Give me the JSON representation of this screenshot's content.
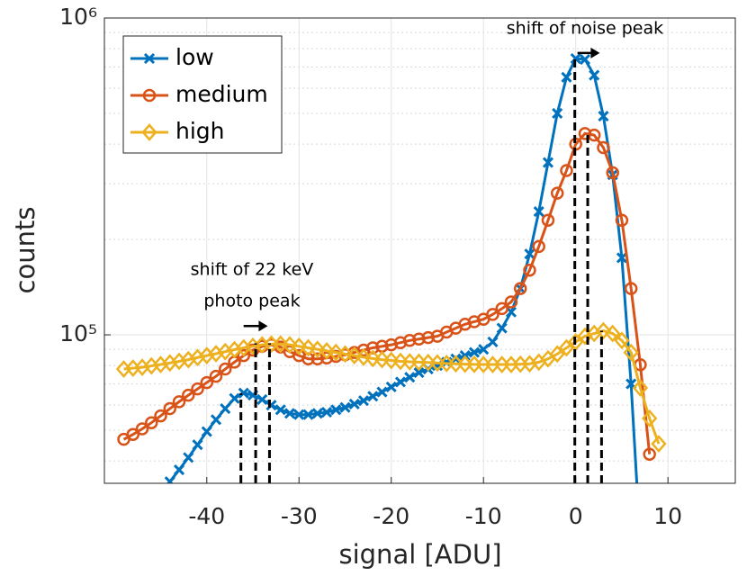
{
  "chart_data": {
    "type": "line",
    "xlabel": "signal [ADU]",
    "ylabel": "counts",
    "xlim": [
      -51.1,
      17.3
    ],
    "xticks": [
      -40,
      -30,
      -20,
      -10,
      0,
      10
    ],
    "ylim": [
      34000,
      1000000
    ],
    "yscale": "log",
    "yticks": [
      {
        "value": 100000,
        "label": "10⁵"
      },
      {
        "value": 1000000,
        "label": "10⁶"
      }
    ],
    "y_minor_ticks": [
      40000,
      50000,
      60000,
      70000,
      80000,
      90000,
      200000,
      300000,
      400000,
      500000,
      600000,
      700000,
      800000,
      900000
    ],
    "grid": true,
    "legend": "upper left",
    "series": [
      {
        "name": "low",
        "color": "#0072BD",
        "marker": "x",
        "x": [
          -44,
          -43,
          -42,
          -41,
          -40,
          -39,
          -38,
          -37,
          -36,
          -35,
          -34,
          -33,
          -32,
          -31,
          -30,
          -29,
          -28,
          -27,
          -26,
          -25,
          -24,
          -23,
          -22,
          -21,
          -20,
          -19,
          -18,
          -17,
          -16,
          -15,
          -14,
          -13,
          -12,
          -11,
          -10,
          -9,
          -8,
          -7,
          -6,
          -5,
          -4,
          -3,
          -2,
          -1,
          0,
          1,
          2,
          3,
          4,
          5,
          6,
          7
        ],
        "values": [
          34400,
          37500,
          41000,
          45000,
          49500,
          54000,
          58500,
          63000,
          65500,
          64500,
          62500,
          60000,
          58000,
          56500,
          56000,
          56000,
          56500,
          57000,
          58000,
          59000,
          60500,
          62000,
          64000,
          66000,
          68500,
          71000,
          73500,
          76000,
          78000,
          80000,
          82000,
          84000,
          86000,
          88000,
          90000,
          95000,
          105000,
          118000,
          140000,
          180000,
          245000,
          350000,
          500000,
          650000,
          745000,
          740000,
          660000,
          490000,
          320000,
          175000,
          70000,
          22000
        ]
      },
      {
        "name": "medium",
        "color": "#D95319",
        "marker": "o",
        "x": [
          -49,
          -48,
          -47,
          -46,
          -45,
          -44,
          -43,
          -42,
          -41,
          -40,
          -39,
          -38,
          -37,
          -36,
          -35,
          -34,
          -33,
          -32,
          -31,
          -30,
          -29,
          -28,
          -27,
          -26,
          -25,
          -24,
          -23,
          -22,
          -21,
          -20,
          -19,
          -18,
          -17,
          -16,
          -15,
          -14,
          -13,
          -12,
          -11,
          -10,
          -9,
          -8,
          -7,
          -6,
          -5,
          -4,
          -3,
          -2,
          -1,
          0,
          1,
          2,
          3,
          4,
          5,
          6,
          7,
          8
        ],
        "values": [
          46800,
          48500,
          50500,
          52800,
          55500,
          58500,
          61500,
          64500,
          67500,
          70700,
          74000,
          78000,
          82000,
          86000,
          89500,
          92000,
          93000,
          91500,
          88500,
          86000,
          84000,
          84000,
          84500,
          85500,
          86500,
          88000,
          89500,
          91000,
          92000,
          93000,
          94500,
          96000,
          97000,
          98000,
          99000,
          102000,
          105000,
          108000,
          110000,
          112000,
          116000,
          121000,
          127000,
          140000,
          160000,
          190000,
          230000,
          280000,
          330000,
          400000,
          432000,
          427000,
          390000,
          325000,
          230000,
          140000,
          80500,
          42000
        ]
      },
      {
        "name": "high",
        "color": "#EDB120",
        "marker": "d",
        "x": [
          -49,
          -48,
          -47,
          -46,
          -45,
          -44,
          -43,
          -42,
          -41,
          -40,
          -39,
          -38,
          -37,
          -36,
          -35,
          -34,
          -33,
          -32,
          -31,
          -30,
          -29,
          -28,
          -27,
          -26,
          -25,
          -24,
          -23,
          -22,
          -21,
          -20,
          -19,
          -18,
          -17,
          -16,
          -15,
          -14,
          -13,
          -12,
          -11,
          -10,
          -9,
          -8,
          -7,
          -6,
          -5,
          -4,
          -3,
          -2,
          -1,
          0,
          1,
          2,
          3,
          4,
          5,
          6,
          7,
          8,
          9
        ],
        "values": [
          78000,
          78500,
          79000,
          79800,
          80600,
          81500,
          82500,
          83500,
          84800,
          86000,
          87200,
          88500,
          89800,
          91000,
          92000,
          93000,
          93500,
          93500,
          93000,
          92000,
          91000,
          90000,
          89000,
          88000,
          87000,
          86000,
          85000,
          84200,
          83500,
          83000,
          82500,
          82200,
          82000,
          81800,
          81500,
          81200,
          81000,
          80800,
          80700,
          80600,
          80600,
          80600,
          80600,
          80800,
          81000,
          82000,
          84000,
          87000,
          91000,
          95000,
          99000,
          101000,
          103000,
          101000,
          96000,
          88000,
          68000,
          54500,
          45300
        ]
      }
    ],
    "annotations": [
      {
        "text": [
          "shift of noise peak"
        ],
        "x": 1.0,
        "y": 925000,
        "dashes": [
          {
            "x": -0.1,
            "top": 745000
          },
          {
            "x": 1.3,
            "top": 432000
          },
          {
            "x": 2.8,
            "top": 103000
          }
        ]
      },
      {
        "text": [
          "shift of 22 keV",
          "photo peak"
        ],
        "x": -35.1,
        "y": 160000,
        "dashes": [
          {
            "x": -36.3,
            "top": 65500
          },
          {
            "x": -34.7,
            "top": 94000
          },
          {
            "x": -33.2,
            "top": 94000
          }
        ]
      }
    ]
  }
}
